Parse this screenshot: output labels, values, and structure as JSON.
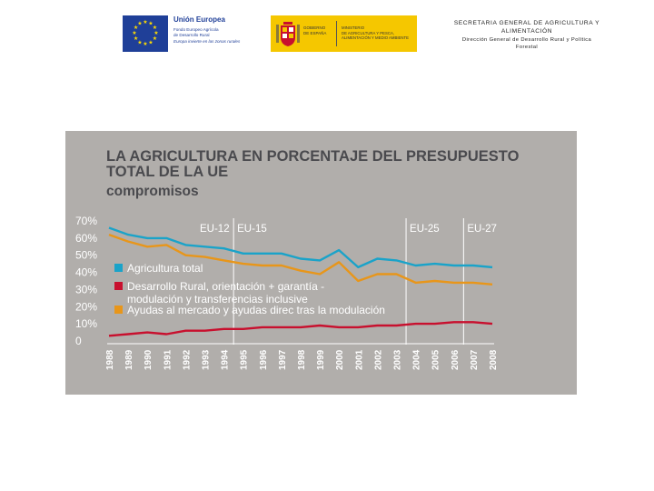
{
  "header": {
    "eu": {
      "title": "Unión Europea",
      "fund_line1": "Fondo Europeo Agrícola",
      "fund_line2": "de Desarrollo Rural",
      "motto": "Europa invierte en las zonas rurales",
      "flag_color": "#1f3f98"
    },
    "gobierno": {
      "gov_text": "GOBIERNO\nDE ESPAÑA",
      "ministry_text": "MINISTERIO\nDE AGRICULTURA Y PESCA,\nALIMENTACIÓN Y MEDIO AMBIENTE",
      "bg_color": "#f5c700"
    },
    "secretaria": {
      "line1": "SECRETARIA GENERAL DE AGRICULTURA Y",
      "line2": "ALIMENTACIÓN",
      "line3": "Dirección General de Desarrollo Rural y Política",
      "line4": "Forestal"
    }
  },
  "chart_data": {
    "type": "line",
    "title": "LA AGRICULTURA EN PORCENTAJE DEL PRESUPUESTO TOTAL DE LA UE",
    "subtitle": "compromisos",
    "xlabel": "",
    "ylabel": "",
    "x": [
      "1988",
      "1989",
      "1990",
      "1991",
      "1992",
      "1993",
      "1994",
      "1995",
      "1996",
      "1997",
      "1998",
      "1999",
      "2000",
      "2001",
      "2002",
      "2003",
      "2004",
      "2005",
      "2006",
      "2007",
      "2008"
    ],
    "y_ticks": [
      "0",
      "10%",
      "20%",
      "30%",
      "40%",
      "50%",
      "60%",
      "70%"
    ],
    "ylim": [
      0,
      70
    ],
    "grid": false,
    "legend_position": "left",
    "regions": [
      {
        "label": "EU-12",
        "start": "1988",
        "end": "1994"
      },
      {
        "label": "EU-15",
        "start": "1995",
        "end": "2003"
      },
      {
        "label": "EU-25",
        "start": "2004",
        "end": "2006"
      },
      {
        "label": "EU-27",
        "start": "2007",
        "end": "2008"
      }
    ],
    "series": [
      {
        "name": "Agricultura total",
        "color": "#1aa3c9",
        "values": [
          66,
          62,
          60,
          60,
          56,
          55,
          54,
          51,
          51,
          51,
          48,
          47,
          53,
          43,
          48,
          47,
          44,
          45,
          44,
          44,
          43
        ]
      },
      {
        "name": "Desarrollo Rural, orientación + garantía - modulación y transferencias inclusive",
        "legend_lines": [
          "Desarrollo Rural, orientación + garantía -",
          "modulación y transferencias inclusive"
        ],
        "color": "#c8102e",
        "values": [
          3,
          4,
          5,
          4,
          6,
          6,
          7,
          7,
          8,
          8,
          8,
          9,
          8,
          8,
          9,
          9,
          10,
          10,
          11,
          11,
          10
        ]
      },
      {
        "name": "Ayudas al mercado y ayudas direc tras la modulación",
        "color": "#e8961a",
        "values": [
          62,
          58,
          55,
          56,
          50,
          49,
          47,
          45,
          44,
          44,
          41,
          39,
          46,
          35,
          39,
          39,
          34,
          35,
          34,
          34,
          33
        ]
      }
    ]
  }
}
